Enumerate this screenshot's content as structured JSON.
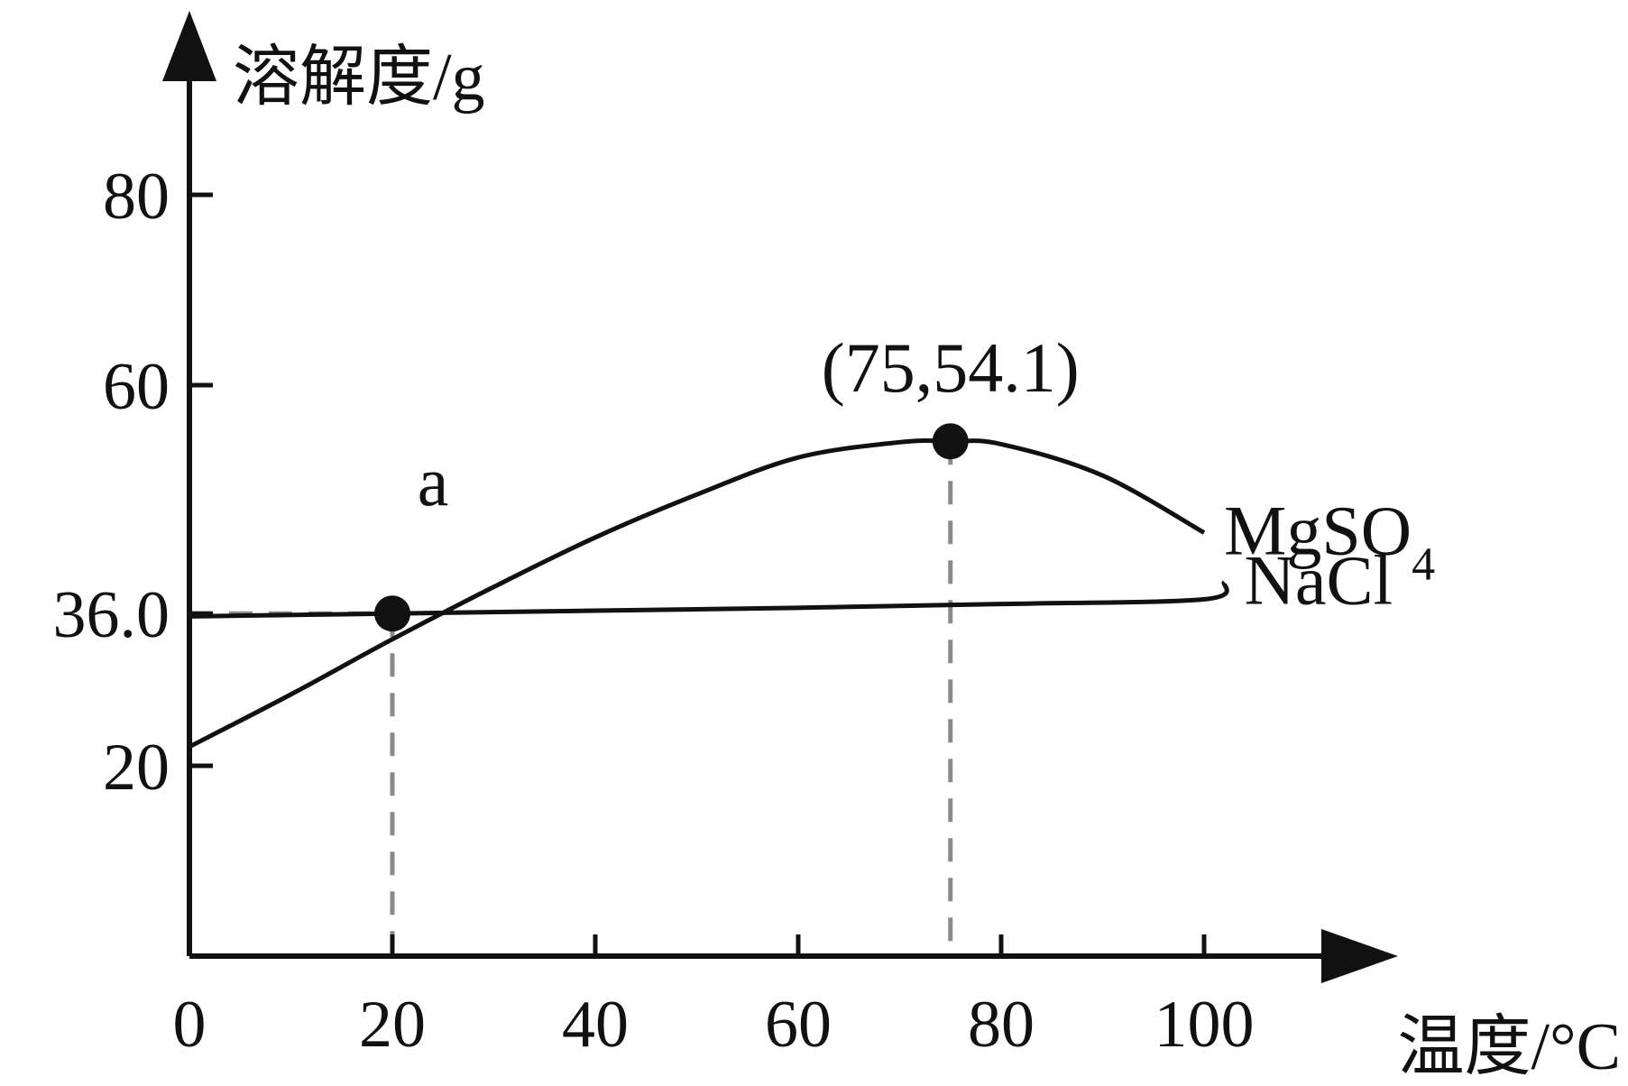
{
  "chart_data": {
    "type": "line",
    "xlabel": "温度/°C",
    "ylabel": "溶解度/g",
    "xlim": [
      0,
      120
    ],
    "ylim": [
      0,
      90
    ],
    "x_ticks": [
      "0",
      "20",
      "40",
      "60",
      "80",
      "100"
    ],
    "y_ticks": [
      "20",
      "36.0",
      "60",
      "80"
    ],
    "grid": false,
    "series": [
      {
        "name": "MgSO4",
        "label_main": "MgSO",
        "label_sub": "4",
        "points": [
          [
            0,
            22.0
          ],
          [
            10,
            27.5
          ],
          [
            20,
            33.3
          ],
          [
            30,
            38.8
          ],
          [
            40,
            44.0
          ],
          [
            50,
            48.5
          ],
          [
            60,
            52.4
          ],
          [
            70,
            54.0
          ],
          [
            75,
            54.1
          ],
          [
            80,
            53.8
          ],
          [
            90,
            50.5
          ],
          [
            100,
            44.5
          ]
        ]
      },
      {
        "name": "NaCl",
        "label_main": "NaCl",
        "label_sub": "",
        "points": [
          [
            0,
            35.7
          ],
          [
            20,
            36.0
          ],
          [
            40,
            36.3
          ],
          [
            60,
            36.6
          ],
          [
            80,
            37.0
          ],
          [
            100,
            37.5
          ],
          [
            102,
            39.3
          ]
        ]
      }
    ],
    "marked_points": [
      {
        "x": 20,
        "y": 36.0,
        "label": "a"
      },
      {
        "x": 75,
        "y": 54.1,
        "label": "(75,54.1)"
      }
    ]
  }
}
